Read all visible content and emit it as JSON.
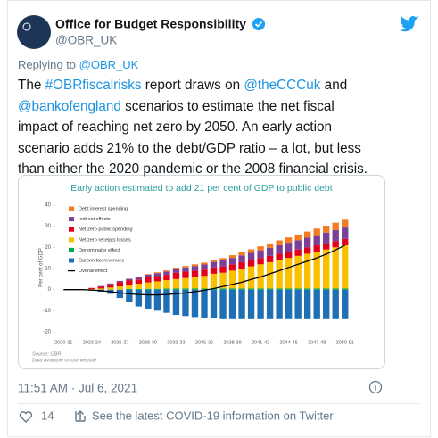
{
  "tweet": {
    "author": {
      "name": "Office for Budget Responsibility",
      "handle": "@OBR_UK"
    },
    "replying_to": {
      "label": "Replying to",
      "handle": "@OBR_UK"
    },
    "lines": [
      [
        {
          "t": "The "
        },
        {
          "link": "#OBRfiscalrisks"
        },
        {
          "t": " report draws on "
        },
        {
          "link": "@theCCCuk"
        },
        {
          "t": " and"
        }
      ],
      [
        {
          "link": "@bankofengland"
        },
        {
          "t": " scenarios to estimate the net fiscal"
        }
      ],
      [
        {
          "t": "impact of reaching net zero by 2050. An early action"
        }
      ],
      [
        {
          "t": "scenario adds 21% to the debt/GDP ratio – a lot, but less"
        }
      ],
      [
        {
          "t": "than either the 2020 pandemic or the 2008 financial crisis."
        }
      ]
    ],
    "timestamp": "11:51 AM · Jul 6, 2021",
    "likes": 14,
    "covid_notice": "See the latest COVID-19 information on Twitter"
  },
  "chart_data": {
    "type": "bar",
    "stacked": true,
    "title": "Early action estimated to add 21 per cent of GDP to public debt",
    "ylabel": "Per cent of GDP",
    "source": "Source: OBR",
    "note": "Data available on our website",
    "categories": [
      "2020-21",
      null,
      null,
      "2023-24",
      null,
      null,
      "2026-27",
      null,
      null,
      "2029-30",
      null,
      null,
      "2032-33",
      null,
      null,
      "2035-36",
      null,
      null,
      "2038-39",
      null,
      null,
      "2041-42",
      null,
      null,
      "2044-45",
      null,
      null,
      "2047-48",
      null,
      null,
      "2050-51"
    ],
    "ylim": [
      -20,
      40
    ],
    "yticks": [
      -20,
      -10,
      0,
      10,
      20,
      30,
      40
    ],
    "grid": false,
    "series": [
      {
        "name": "Debt interest spending",
        "color": "#f47b20",
        "values": [
          0,
          0,
          0,
          0,
          0,
          0,
          0,
          0.1,
          0.2,
          0.3,
          0.4,
          0.5,
          0.6,
          0.7,
          0.8,
          0.9,
          1,
          1.1,
          1.3,
          1.5,
          1.7,
          1.9,
          2.1,
          2.3,
          2.5,
          2.7,
          2.9,
          3.1,
          3.3,
          3.5,
          3.7
        ]
      },
      {
        "name": "Indirect effects",
        "color": "#7b3f98",
        "values": [
          0,
          0,
          0,
          0,
          0.2,
          0.4,
          0.6,
          0.8,
          1,
          1.2,
          1.4,
          1.6,
          1.8,
          2,
          2.2,
          2.4,
          2.6,
          2.8,
          3,
          3.2,
          3.4,
          3.6,
          3.8,
          4,
          4.2,
          4.4,
          4.6,
          4.8,
          5,
          5.2,
          5.4
        ]
      },
      {
        "name": "Net zero public spending",
        "color": "#e2001a",
        "values": [
          0,
          0,
          0,
          0.5,
          1,
          1.5,
          2,
          2,
          2,
          2.5,
          2.5,
          2.5,
          3,
          3,
          3,
          3,
          3,
          3,
          3,
          3,
          3,
          3,
          3,
          3,
          3,
          3,
          3,
          3,
          3,
          3,
          3
        ]
      },
      {
        "name": "Net zero receipts losses",
        "color": "#f9c000",
        "values": [
          0,
          0,
          0,
          0.3,
          0.5,
          1,
          1.5,
          2,
          2.5,
          3,
          3.5,
          4,
          4.5,
          5,
          5.5,
          6,
          7,
          7.5,
          8.5,
          9.5,
          10.5,
          11.5,
          12.5,
          13.5,
          14.5,
          15.5,
          16.5,
          17.5,
          18.5,
          19.5,
          20.5
        ]
      },
      {
        "name": "Denominator effect",
        "color": "#00a651",
        "values": [
          0,
          0,
          0,
          0,
          0,
          0,
          0,
          0.3,
          0.3,
          0.4,
          0.4,
          0.5,
          0.5,
          0.5,
          0.5,
          0.5,
          0.5,
          0.5,
          0.5,
          0.5,
          0.5,
          0.5,
          0.5,
          0.5,
          0.5,
          0.5,
          0.5,
          0.5,
          0.5,
          0.5,
          0.5
        ]
      },
      {
        "name": "Carbon tax revenues",
        "color": "#1f6fb5",
        "values": [
          0,
          0,
          0,
          -0.5,
          -1,
          -2,
          -4,
          -6,
          -8,
          -9,
          -10,
          -11,
          -12,
          -12.5,
          -13,
          -13.5,
          -13.5,
          -14,
          -14,
          -14,
          -14,
          -14,
          -14,
          -14,
          -14,
          -14,
          -14,
          -14,
          -14,
          -14,
          -14
        ]
      },
      {
        "name": "Overall effect",
        "type": "line",
        "color": "#000000",
        "values": [
          0,
          0,
          0,
          -0.2,
          -0.5,
          -1,
          -1.5,
          -2,
          -2.3,
          -2.5,
          -2.5,
          -2.3,
          -2,
          -1.5,
          -1,
          -0.3,
          0.5,
          1.5,
          2.5,
          3.5,
          4.8,
          6,
          7.5,
          9,
          10.5,
          12,
          13.5,
          15,
          16.8,
          18.8,
          21
        ]
      }
    ]
  }
}
